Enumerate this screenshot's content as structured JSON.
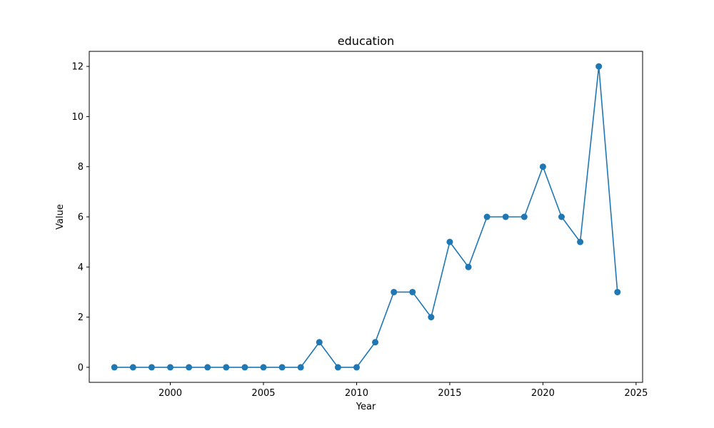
{
  "chart_data": {
    "type": "line",
    "title": "education",
    "xlabel": "Year",
    "ylabel": "Value",
    "xlim": [
      1995.65,
      2025.35
    ],
    "ylim": [
      -0.6,
      12.6
    ],
    "x_ticks": [
      2000,
      2005,
      2010,
      2015,
      2020,
      2025
    ],
    "y_ticks": [
      0,
      2,
      4,
      6,
      8,
      10,
      12
    ],
    "grid": false,
    "legend": "none",
    "series": [
      {
        "color": "#1f77b4",
        "marker": "circle",
        "x": [
          1997,
          1998,
          1999,
          2000,
          2001,
          2002,
          2003,
          2004,
          2005,
          2006,
          2007,
          2008,
          2009,
          2010,
          2011,
          2012,
          2013,
          2014,
          2015,
          2016,
          2017,
          2018,
          2019,
          2020,
          2021,
          2022,
          2023,
          2024
        ],
        "y": [
          0,
          0,
          0,
          0,
          0,
          0,
          0,
          0,
          0,
          0,
          0,
          1,
          0,
          0,
          1,
          3,
          3,
          2,
          5,
          4,
          6,
          6,
          6,
          8,
          6,
          5,
          12,
          3
        ]
      }
    ]
  }
}
